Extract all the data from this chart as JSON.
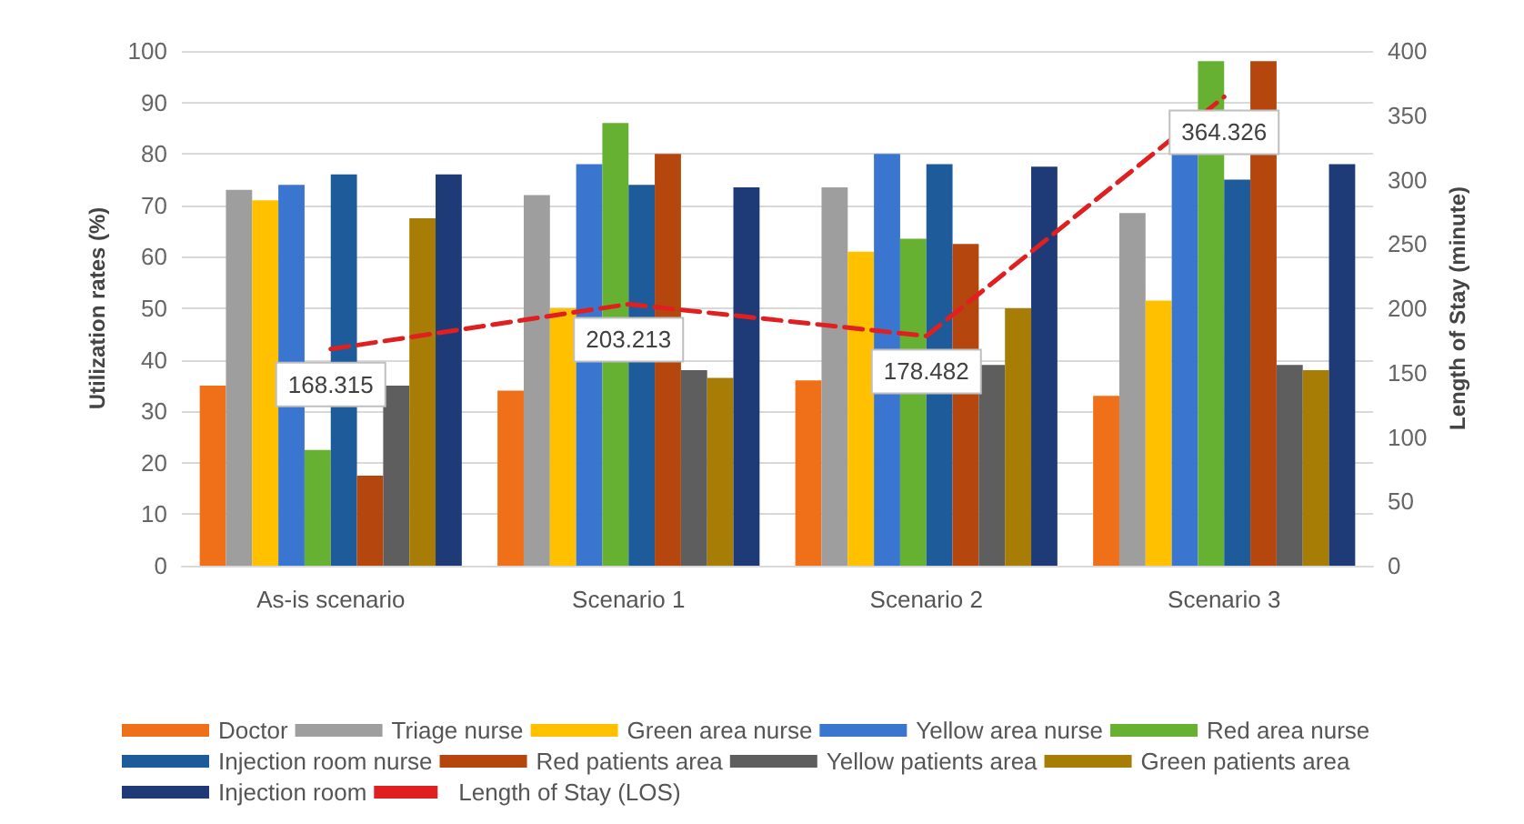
{
  "chart_data": {
    "type": "bar",
    "categories": [
      "As-is scenario",
      "Scenario 1",
      "Scenario 2",
      "Scenario 3"
    ],
    "ylabel": "Utilization rates (%)",
    "y2label": "Length of Stay (minute)",
    "ylim": [
      0,
      100
    ],
    "yticks": [
      0,
      10,
      20,
      30,
      40,
      50,
      60,
      70,
      80,
      90,
      100
    ],
    "y2lim": [
      0,
      400
    ],
    "y2ticks": [
      0,
      50,
      100,
      150,
      200,
      250,
      300,
      350,
      400
    ],
    "grid": "y",
    "legend": "bottom",
    "series": [
      {
        "name": "Doctor",
        "color": "#f0701a",
        "values": [
          35,
          34,
          36,
          33
        ]
      },
      {
        "name": "Triage nurse",
        "color": "#9e9e9e",
        "values": [
          73,
          72,
          73.5,
          68.5
        ]
      },
      {
        "name": "Green area nurse",
        "color": "#ffc000",
        "values": [
          71,
          50,
          61,
          51.5
        ]
      },
      {
        "name": "Yellow area nurse",
        "color": "#3a75d0",
        "values": [
          74,
          78,
          80,
          80
        ]
      },
      {
        "name": "Red area nurse",
        "color": "#66b032",
        "values": [
          22.5,
          86,
          63.5,
          98
        ]
      },
      {
        "name": "Injection room nurse",
        "color": "#1d5b9a",
        "values": [
          76,
          74,
          78,
          75
        ]
      },
      {
        "name": "Red patients area",
        "color": "#b5460d",
        "values": [
          17.5,
          80,
          62.5,
          98
        ]
      },
      {
        "name": "Yellow patients area",
        "color": "#5e5e5e",
        "values": [
          35,
          38,
          39,
          39
        ]
      },
      {
        "name": "Green patients area",
        "color": "#a87d06",
        "values": [
          67.5,
          36.5,
          50,
          38
        ]
      },
      {
        "name": "Injection room",
        "color": "#1e3b78",
        "values": [
          76,
          73.5,
          77.5,
          78
        ]
      },
      {
        "name": "Length of Stay (LOS)",
        "type": "line",
        "axis": "y2",
        "color": "#e02020",
        "line_style": "dashed",
        "marker": "none",
        "values": [
          168.315,
          203.213,
          178.482,
          364.326
        ],
        "value_labels": [
          "168.315",
          "203.213",
          "178.482",
          "364.326"
        ]
      }
    ]
  }
}
